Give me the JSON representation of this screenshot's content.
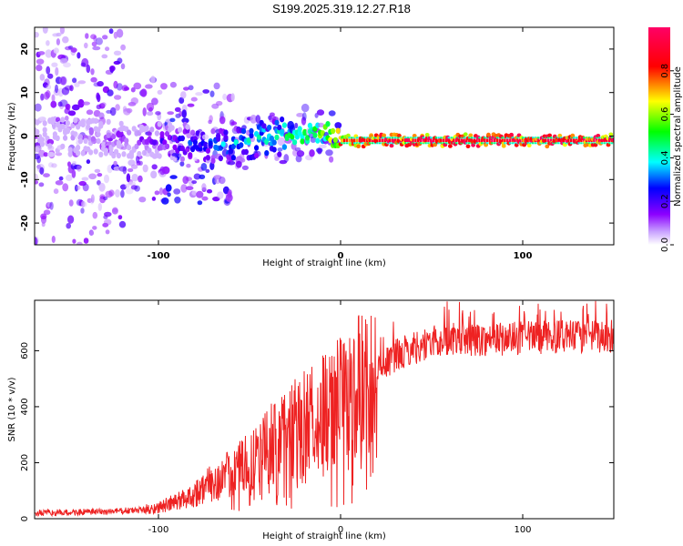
{
  "title": "S199.2025.319.12.27.R18",
  "chart_data": [
    {
      "type": "heatmap",
      "title": "S199.2025.319.12.27.R18",
      "xlabel": "Height of straight line (km)",
      "ylabel": "Frequency (Hz)",
      "xlim": [
        -168,
        150
      ],
      "ylim": [
        -25,
        25
      ],
      "xticks": [
        -100,
        0,
        100
      ],
      "yticks": [
        -20,
        -10,
        0,
        10,
        20
      ],
      "colorbar": {
        "label": "Normalized spectral amplitude",
        "range": [
          0,
          1
        ],
        "ticks": [
          0.0,
          0.2,
          0.4,
          0.6,
          0.8
        ],
        "tick_labels": [
          "0.0",
          "0.2",
          "0.4",
          "0.6",
          "0.8"
        ],
        "colormap": [
          "#ffffff",
          "#8c00ff",
          "#0000ff",
          "#00ffff",
          "#00ff00",
          "#ffff00",
          "#ff0000",
          "#ff0066"
        ]
      },
      "signal": {
        "description_freq_hz": [
          {
            "height_km": -160,
            "freq_hz": 0
          },
          {
            "height_km": -100,
            "freq_hz": -1
          },
          {
            "height_km": -60,
            "freq_hz": -2
          },
          {
            "height_km": -30,
            "freq_hz": 0
          },
          {
            "height_km": -8,
            "freq_hz": 1
          },
          {
            "height_km": 0,
            "freq_hz": -1
          },
          {
            "height_km": 50,
            "freq_hz": -1
          },
          {
            "height_km": 150,
            "freq_hz": -1
          }
        ],
        "amplitude": [
          {
            "height_km": -160,
            "amp": 0.05
          },
          {
            "height_km": -110,
            "amp": 0.15
          },
          {
            "height_km": -80,
            "amp": 0.3
          },
          {
            "height_km": -40,
            "amp": 0.45
          },
          {
            "height_km": -10,
            "amp": 0.6
          },
          {
            "height_km": 0,
            "amp": 0.8
          },
          {
            "height_km": 30,
            "amp": 0.95
          },
          {
            "height_km": 150,
            "amp": 0.95
          }
        ]
      }
    },
    {
      "type": "line",
      "xlabel": "Height of straight line (km)",
      "ylabel": "SNR (10 * v/v)",
      "xlim": [
        -168,
        150
      ],
      "ylim": [
        0,
        780
      ],
      "xticks": [
        -100,
        0,
        100
      ],
      "yticks": [
        0,
        200,
        400,
        600
      ],
      "color": "#ee2222",
      "series": [
        {
          "name": "SNR",
          "x": [
            -168,
            -150,
            -130,
            -110,
            -100,
            -90,
            -80,
            -70,
            -60,
            -50,
            -40,
            -30,
            -20,
            -10,
            0,
            10,
            20,
            30,
            40,
            50,
            60,
            80,
            100,
            120,
            150
          ],
          "values": [
            20,
            22,
            25,
            30,
            40,
            60,
            90,
            130,
            160,
            200,
            260,
            300,
            350,
            380,
            420,
            470,
            530,
            580,
            610,
            630,
            640,
            640,
            645,
            650,
            650
          ]
        }
      ]
    }
  ]
}
